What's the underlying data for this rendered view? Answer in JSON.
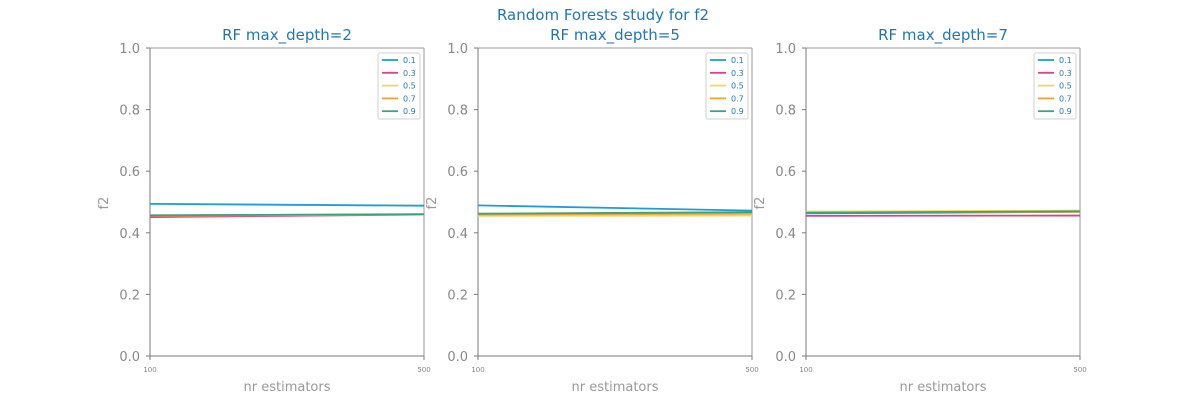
{
  "figure": {
    "suptitle": "Random Forests study for f2"
  },
  "chart_data": [
    {
      "type": "line",
      "title": "RF max_depth=2",
      "xlabel": "nr estimators",
      "ylabel": "f2",
      "x": [
        100,
        500
      ],
      "xticks": [
        "100",
        "500"
      ],
      "ylim": [
        0,
        1
      ],
      "yticks": [
        "0.0",
        "0.2",
        "0.4",
        "0.6",
        "0.8",
        "1.0"
      ],
      "legend_position": "top-right",
      "series": [
        {
          "name": "0.1",
          "color": "#1f9bd6",
          "values": [
            0.494,
            0.488
          ]
        },
        {
          "name": "0.3",
          "color": "#d6438a",
          "values": [
            0.451,
            0.459
          ]
        },
        {
          "name": "0.5",
          "color": "#f2d46b",
          "values": [
            0.456,
            0.459
          ]
        },
        {
          "name": "0.7",
          "color": "#f0a33a",
          "values": [
            0.456,
            0.461
          ]
        },
        {
          "name": "0.9",
          "color": "#3aa37a",
          "values": [
            0.457,
            0.46
          ]
        }
      ]
    },
    {
      "type": "line",
      "title": "RF max_depth=5",
      "xlabel": "nr estimators",
      "ylabel": "f2",
      "x": [
        100,
        500
      ],
      "xticks": [
        "100",
        "500"
      ],
      "ylim": [
        0,
        1
      ],
      "yticks": [
        "0.0",
        "0.2",
        "0.4",
        "0.6",
        "0.8",
        "1.0"
      ],
      "legend_position": "top-right",
      "series": [
        {
          "name": "0.1",
          "color": "#1f9bd6",
          "values": [
            0.489,
            0.472
          ]
        },
        {
          "name": "0.3",
          "color": "#d6438a",
          "values": [
            0.461,
            0.465
          ]
        },
        {
          "name": "0.5",
          "color": "#f2d46b",
          "values": [
            0.455,
            0.456
          ]
        },
        {
          "name": "0.7",
          "color": "#f0a33a",
          "values": [
            0.459,
            0.462
          ]
        },
        {
          "name": "0.9",
          "color": "#3aa37a",
          "values": [
            0.462,
            0.467
          ]
        }
      ]
    },
    {
      "type": "line",
      "title": "RF max_depth=7",
      "xlabel": "nr estimators",
      "ylabel": "f2",
      "x": [
        100,
        500
      ],
      "xticks": [
        "100",
        "500"
      ],
      "ylim": [
        0,
        1
      ],
      "yticks": [
        "0.0",
        "0.2",
        "0.4",
        "0.6",
        "0.8",
        "1.0"
      ],
      "legend_position": "top-right",
      "series": [
        {
          "name": "0.1",
          "color": "#1f9bd6",
          "values": [
            0.463,
            0.468
          ]
        },
        {
          "name": "0.3",
          "color": "#d6438a",
          "values": [
            0.455,
            0.456
          ]
        },
        {
          "name": "0.5",
          "color": "#f2d46b",
          "values": [
            0.469,
            0.472
          ]
        },
        {
          "name": "0.7",
          "color": "#f0a33a",
          "values": [
            0.466,
            0.468
          ]
        },
        {
          "name": "0.9",
          "color": "#3aa37a",
          "values": [
            0.465,
            0.47
          ]
        }
      ]
    }
  ]
}
